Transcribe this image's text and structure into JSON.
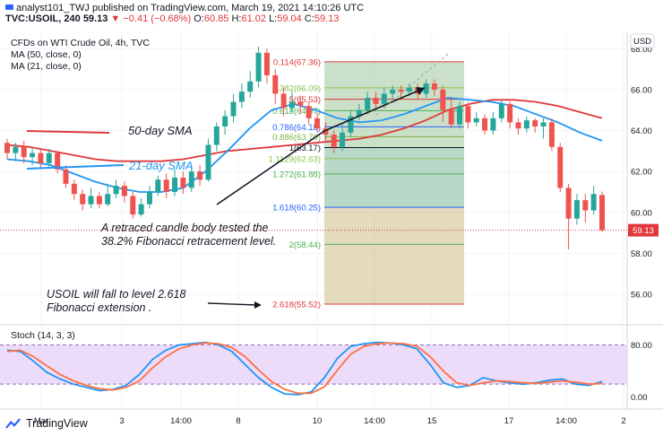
{
  "header": {
    "publisher": "analyst101_TWJ published on TradingView.com, March 19, 2021 14:10:26 UTC",
    "symbol": "TVC:USOIL, 240",
    "last": "59.13",
    "change": "▼ −0.41 (−0.68%)",
    "ohlc": {
      "o_label": "O:",
      "o": "60.85",
      "h_label": "H:",
      "h": "61.02",
      "l_label": "L:",
      "l": "59.04",
      "c_label": "C:",
      "c": "59.13"
    }
  },
  "legend": {
    "title": "CFDs on WTI Crude Oil, 4h, TVC",
    "ma50": "MA (50, close, 0)",
    "ma21": "MA (21, close, 0)",
    "stoch": "Stoch (14, 3, 3)"
  },
  "currency": "USD",
  "price_tag": "59.13",
  "annotations": {
    "ma50_label": "50-day SMA",
    "ma21_label": "21-day SMA",
    "retrace_line1": "A retraced candle body tested the",
    "retrace_line2": "38.2% Fibonacci retracement level.",
    "fall_line1": "USOIL will fall to level 2.618",
    "fall_line2": "Fibonacci extension ."
  },
  "fib_levels": [
    {
      "ratio": "0.114",
      "price": 67.36,
      "label": "0.114(67.36)",
      "color": "#e0383b"
    },
    {
      "ratio": "0.382",
      "price": 66.09,
      "label": "0.382(66.09)",
      "color": "#8bc34a"
    },
    {
      "ratio": "0.5",
      "price": 65.53,
      "label": "0.5(65.53)",
      "color": "#e0383b"
    },
    {
      "ratio": "0.618",
      "price": 64.97,
      "label": "0.618(64.97)",
      "color": "#4caf50"
    },
    {
      "ratio": "0.786",
      "price": 64.18,
      "label": "0.786(64.18)",
      "color": "#2962ff"
    },
    {
      "ratio": "0.886",
      "price": 63.7,
      "label": "0.886(63.70)",
      "color": "#7cb342"
    },
    {
      "ratio": "1",
      "price": 63.17,
      "label": "1(63.17)",
      "color": "#131722"
    },
    {
      "ratio": "1.1129",
      "price": 62.63,
      "label": "1.1129(62.63)",
      "color": "#8bc34a"
    },
    {
      "ratio": "1.272",
      "price": 61.88,
      "label": "1.272(61.88)",
      "color": "#4caf50"
    },
    {
      "ratio": "1.618",
      "price": 60.25,
      "label": "1.618(60.25)",
      "color": "#2962ff"
    },
    {
      "ratio": "2",
      "price": 58.44,
      "label": "2(58.44)",
      "color": "#4caf50"
    },
    {
      "ratio": "2.618",
      "price": 55.52,
      "label": "2.618(55.52)",
      "color": "#e0383b"
    }
  ],
  "chart_data": {
    "type": "candlestick",
    "price_axis": {
      "ticks": [
        56,
        58,
        60,
        62,
        64,
        66,
        68
      ],
      "tick_labels": [
        "56.00",
        "58.00",
        "60.00",
        "62.00",
        "64.00",
        "66.00",
        "68.00"
      ],
      "ylim": [
        54.6,
        68.8
      ]
    },
    "stoch_axis": {
      "ticks": [
        0,
        80
      ],
      "tick_labels": [
        "0.00",
        "80.00"
      ],
      "band": [
        20,
        80
      ]
    },
    "x_labels": [
      "Mar",
      "3",
      "14:00",
      "8",
      "10",
      "14:00",
      "15",
      "17",
      "14:00",
      "2"
    ],
    "candles": [
      [
        63.4,
        62.9,
        63.6,
        62.6
      ],
      [
        62.9,
        63.2,
        63.4,
        62.5
      ],
      [
        63.2,
        62.7,
        63.5,
        62.4
      ],
      [
        62.7,
        62.9,
        63.2,
        62.3
      ],
      [
        62.9,
        62.4,
        63.1,
        62.2
      ],
      [
        62.4,
        62.9,
        63.1,
        62.2
      ],
      [
        62.9,
        62.1,
        63.0,
        61.9
      ],
      [
        62.1,
        61.4,
        62.3,
        61.2
      ],
      [
        61.4,
        60.9,
        61.6,
        60.6
      ],
      [
        60.9,
        60.4,
        61.1,
        60.1
      ],
      [
        60.4,
        60.8,
        61.2,
        60.2
      ],
      [
        60.8,
        60.4,
        61.0,
        60.2
      ],
      [
        60.4,
        60.9,
        61.4,
        60.3
      ],
      [
        60.9,
        61.3,
        61.6,
        60.7
      ],
      [
        61.3,
        60.8,
        61.5,
        60.5
      ],
      [
        60.8,
        59.9,
        61.0,
        59.7
      ],
      [
        59.9,
        60.4,
        60.7,
        59.8
      ],
      [
        60.4,
        61.0,
        61.3,
        60.2
      ],
      [
        61.0,
        61.6,
        61.8,
        60.8
      ],
      [
        61.6,
        61.0,
        61.9,
        60.7
      ],
      [
        61.0,
        61.7,
        62.1,
        60.8
      ],
      [
        61.7,
        61.2,
        62.0,
        60.9
      ],
      [
        61.2,
        62.0,
        62.3,
        61.0
      ],
      [
        62.0,
        61.6,
        62.3,
        61.3
      ],
      [
        61.6,
        63.3,
        63.6,
        61.5
      ],
      [
        63.3,
        64.2,
        64.4,
        63.0
      ],
      [
        64.2,
        64.7,
        65.0,
        63.8
      ],
      [
        64.7,
        65.4,
        65.8,
        64.4
      ],
      [
        65.4,
        65.9,
        66.3,
        65.1
      ],
      [
        65.9,
        66.4,
        66.9,
        65.6
      ],
      [
        66.4,
        67.8,
        68.1,
        66.1
      ],
      [
        67.8,
        66.7,
        68.0,
        66.3
      ],
      [
        66.7,
        65.8,
        67.0,
        65.3
      ],
      [
        65.8,
        65.1,
        66.1,
        64.7
      ],
      [
        65.1,
        65.4,
        65.9,
        64.9
      ],
      [
        65.4,
        65.2,
        65.7,
        64.8
      ],
      [
        65.2,
        64.6,
        65.4,
        64.3
      ],
      [
        64.6,
        64.1,
        64.9,
        63.9
      ],
      [
        64.1,
        63.8,
        64.4,
        63.5
      ],
      [
        63.8,
        63.2,
        64.0,
        62.9
      ],
      [
        63.2,
        63.9,
        64.3,
        63.0
      ],
      [
        63.9,
        64.7,
        65.0,
        63.7
      ],
      [
        64.7,
        65.0,
        65.3,
        64.5
      ],
      [
        65.0,
        65.6,
        65.9,
        64.8
      ],
      [
        65.6,
        65.3,
        65.9,
        65.0
      ],
      [
        65.3,
        65.8,
        66.1,
        65.1
      ],
      [
        65.8,
        66.0,
        66.2,
        65.5
      ],
      [
        66.0,
        65.9,
        66.2,
        65.6
      ],
      [
        65.9,
        66.1,
        66.3,
        65.7
      ],
      [
        66.1,
        65.8,
        66.3,
        65.5
      ],
      [
        65.8,
        66.3,
        66.5,
        65.6
      ],
      [
        66.3,
        66.0,
        66.5,
        65.7
      ],
      [
        66.0,
        65.0,
        66.2,
        64.4
      ],
      [
        65.0,
        64.3,
        65.6,
        64.1
      ],
      [
        64.3,
        65.2,
        65.4,
        64.1
      ],
      [
        65.2,
        64.4,
        65.4,
        64.1
      ],
      [
        64.4,
        64.6,
        64.9,
        64.2
      ],
      [
        64.6,
        64.0,
        64.8,
        63.8
      ],
      [
        64.0,
        64.6,
        64.9,
        63.8
      ],
      [
        64.6,
        65.3,
        65.5,
        64.4
      ],
      [
        65.3,
        64.4,
        65.4,
        64.1
      ],
      [
        64.4,
        64.1,
        64.6,
        63.8
      ],
      [
        64.1,
        64.5,
        64.7,
        63.9
      ],
      [
        64.5,
        64.2,
        64.6,
        63.9
      ],
      [
        64.2,
        64.4,
        64.6,
        63.6
      ],
      [
        64.4,
        63.2,
        64.6,
        63.0
      ],
      [
        63.2,
        61.2,
        63.4,
        61.0
      ],
      [
        61.2,
        59.7,
        61.4,
        58.2
      ],
      [
        59.7,
        60.6,
        60.9,
        59.4
      ],
      [
        60.6,
        60.1,
        60.9,
        59.5
      ],
      [
        60.1,
        60.9,
        61.3,
        59.9
      ],
      [
        60.85,
        59.13,
        61.02,
        59.04
      ]
    ],
    "ma50": [
      63.3,
      63.2,
      63.0,
      62.8,
      62.6,
      62.5,
      62.5,
      62.5,
      62.6,
      62.8,
      63.0,
      63.1,
      63.2,
      63.3,
      63.4,
      63.5,
      63.6,
      63.8,
      64.1,
      64.5,
      65.0,
      65.3,
      65.5,
      65.5,
      65.4,
      65.2,
      64.9,
      64.6
    ],
    "ma21": [
      62.6,
      62.5,
      62.3,
      61.9,
      61.5,
      61.2,
      61.0,
      61.0,
      61.2,
      62.0,
      63.0,
      64.1,
      65.0,
      65.3,
      65.0,
      64.6,
      64.4,
      64.5,
      64.8,
      65.2,
      65.6,
      65.5,
      65.4,
      65.2,
      64.8,
      64.4,
      63.9,
      63.5
    ],
    "stoch_k": [
      72,
      70,
      55,
      38,
      28,
      20,
      15,
      10,
      12,
      18,
      35,
      58,
      72,
      80,
      82,
      84,
      80,
      70,
      50,
      30,
      15,
      5,
      4,
      8,
      30,
      60,
      78,
      82,
      84,
      83,
      80,
      74,
      50,
      22,
      15,
      18,
      30,
      25,
      22,
      20,
      22,
      26,
      28,
      20,
      18,
      24
    ],
    "stoch_d": [
      70,
      72,
      62,
      48,
      35,
      25,
      18,
      13,
      11,
      15,
      25,
      45,
      62,
      74,
      80,
      83,
      82,
      76,
      62,
      42,
      24,
      12,
      6,
      6,
      16,
      42,
      66,
      78,
      82,
      83,
      82,
      78,
      62,
      40,
      22,
      18,
      22,
      25,
      24,
      22,
      21,
      23,
      25,
      23,
      20,
      21
    ]
  }
}
